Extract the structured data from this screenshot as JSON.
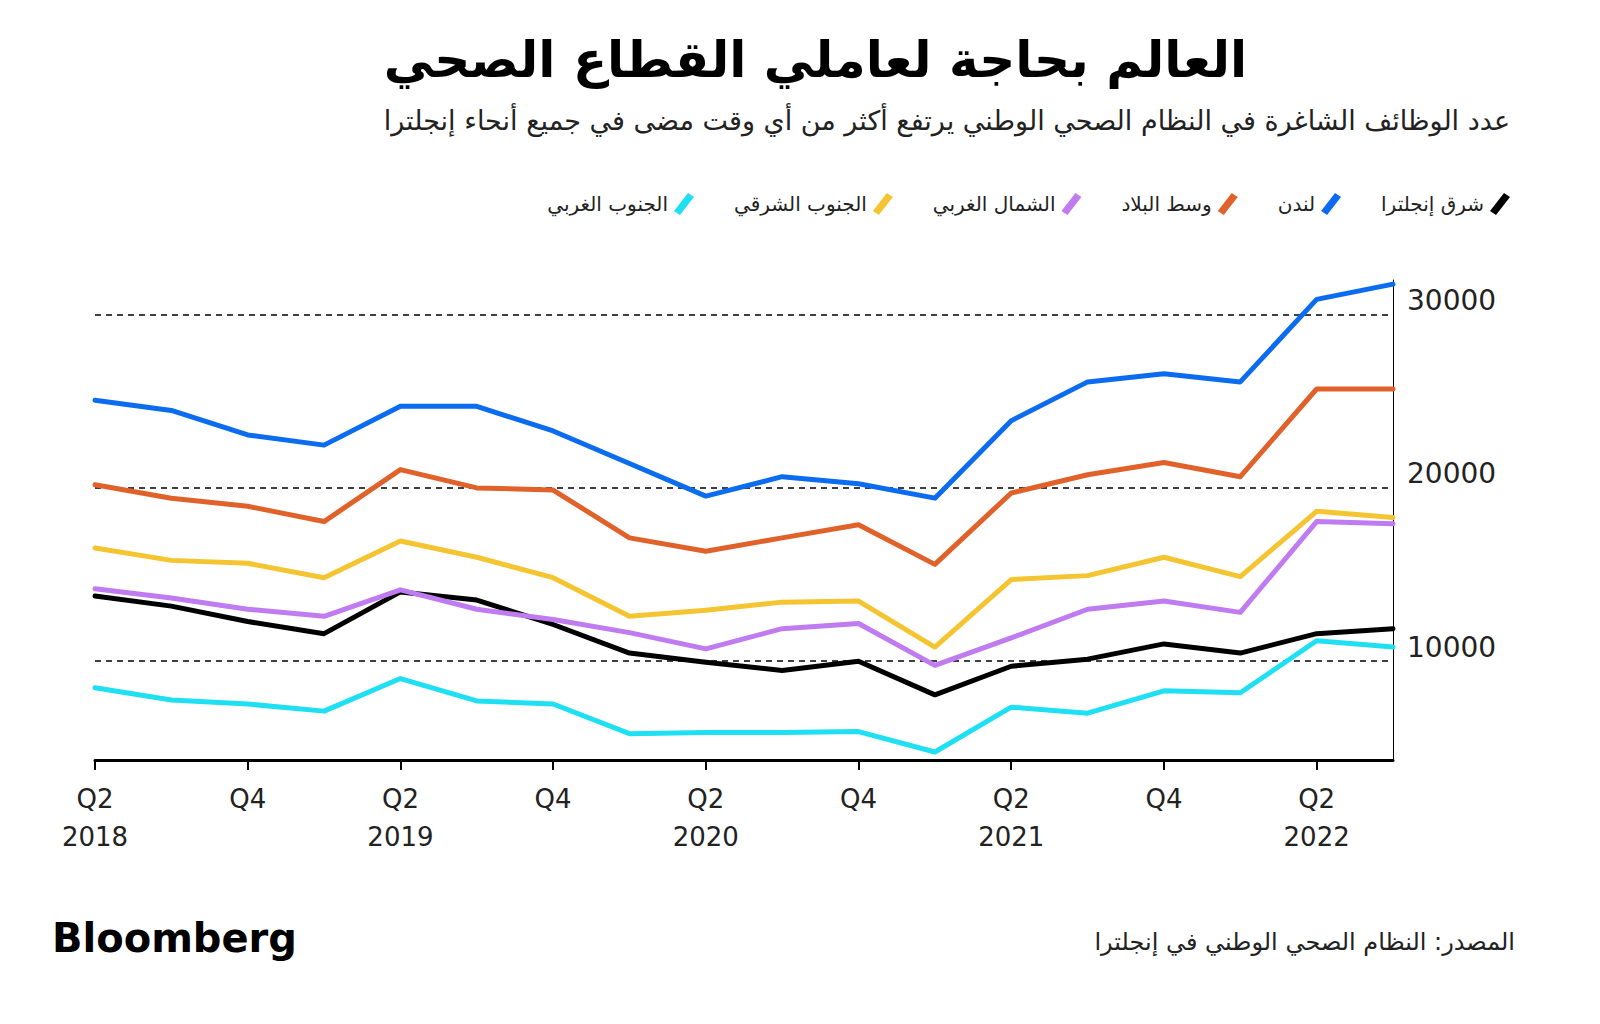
{
  "chart_data": {
    "type": "line",
    "title": "العالم بحاجة لعاملي القطاع الصحي",
    "subtitle": "عدد الوظائف الشاغرة في النظام الصحي الوطني يرتفع أكثر من أي وقت مضى في جميع أنحاء إنجلترا",
    "source": "المصدر: النظام الصحي الوطني في إنجلترا",
    "logo": "Bloomberg",
    "categories": [
      "Q2\n2018",
      null,
      "Q4",
      null,
      "Q2\n2019",
      null,
      "Q4",
      null,
      "Q2\n2020",
      null,
      "Q4",
      null,
      "Q2\n2021",
      null,
      "Q4",
      null,
      "Q2\n2022",
      null
    ],
    "series": [
      {
        "name": "شرق إنجلترا",
        "color": "#000000",
        "values": [
          13760,
          13180,
          12290,
          11590,
          14000,
          13530,
          12120,
          10470,
          9940,
          9470,
          10000,
          8060,
          9710,
          10120,
          11000,
          10470,
          11590,
          11880
        ]
      },
      {
        "name": "لندن",
        "color": "#0b6cf0",
        "values": [
          25060,
          24470,
          23060,
          22470,
          24710,
          24710,
          23290,
          21410,
          19530,
          20650,
          20240,
          19410,
          23880,
          26120,
          26590,
          26120,
          30880,
          31760
        ]
      },
      {
        "name": "وسط البلاد",
        "color": "#e0622a",
        "values": [
          20180,
          19410,
          18940,
          18060,
          21060,
          20000,
          19880,
          17120,
          16350,
          17120,
          17880,
          15590,
          19710,
          20760,
          21470,
          20650,
          25710,
          25710
        ]
      },
      {
        "name": "الشمال الغربي",
        "color": "#c07bf0",
        "values": [
          14180,
          13650,
          13000,
          12590,
          14120,
          13000,
          12410,
          11650,
          10710,
          11880,
          12180,
          9760,
          11350,
          13000,
          13470,
          12820,
          18060,
          17940
        ]
      },
      {
        "name": "الجنوب الشرقي",
        "color": "#f5c431",
        "values": [
          16530,
          15820,
          15650,
          14820,
          16940,
          16000,
          14820,
          12590,
          12940,
          13410,
          13470,
          10820,
          14710,
          14940,
          16000,
          14880,
          18650,
          18290
        ]
      },
      {
        "name": "الجنوب الغربي",
        "color": "#1ee0f2",
        "values": [
          8470,
          7760,
          7530,
          7120,
          9000,
          7710,
          7530,
          5820,
          5880,
          5880,
          5940,
          4760,
          7350,
          7000,
          8290,
          8180,
          11180,
          10820
        ]
      }
    ],
    "ylim": [
      4300,
      32000
    ],
    "yticks": [
      10000,
      20000,
      30000
    ],
    "grid": true,
    "legend": "top"
  }
}
